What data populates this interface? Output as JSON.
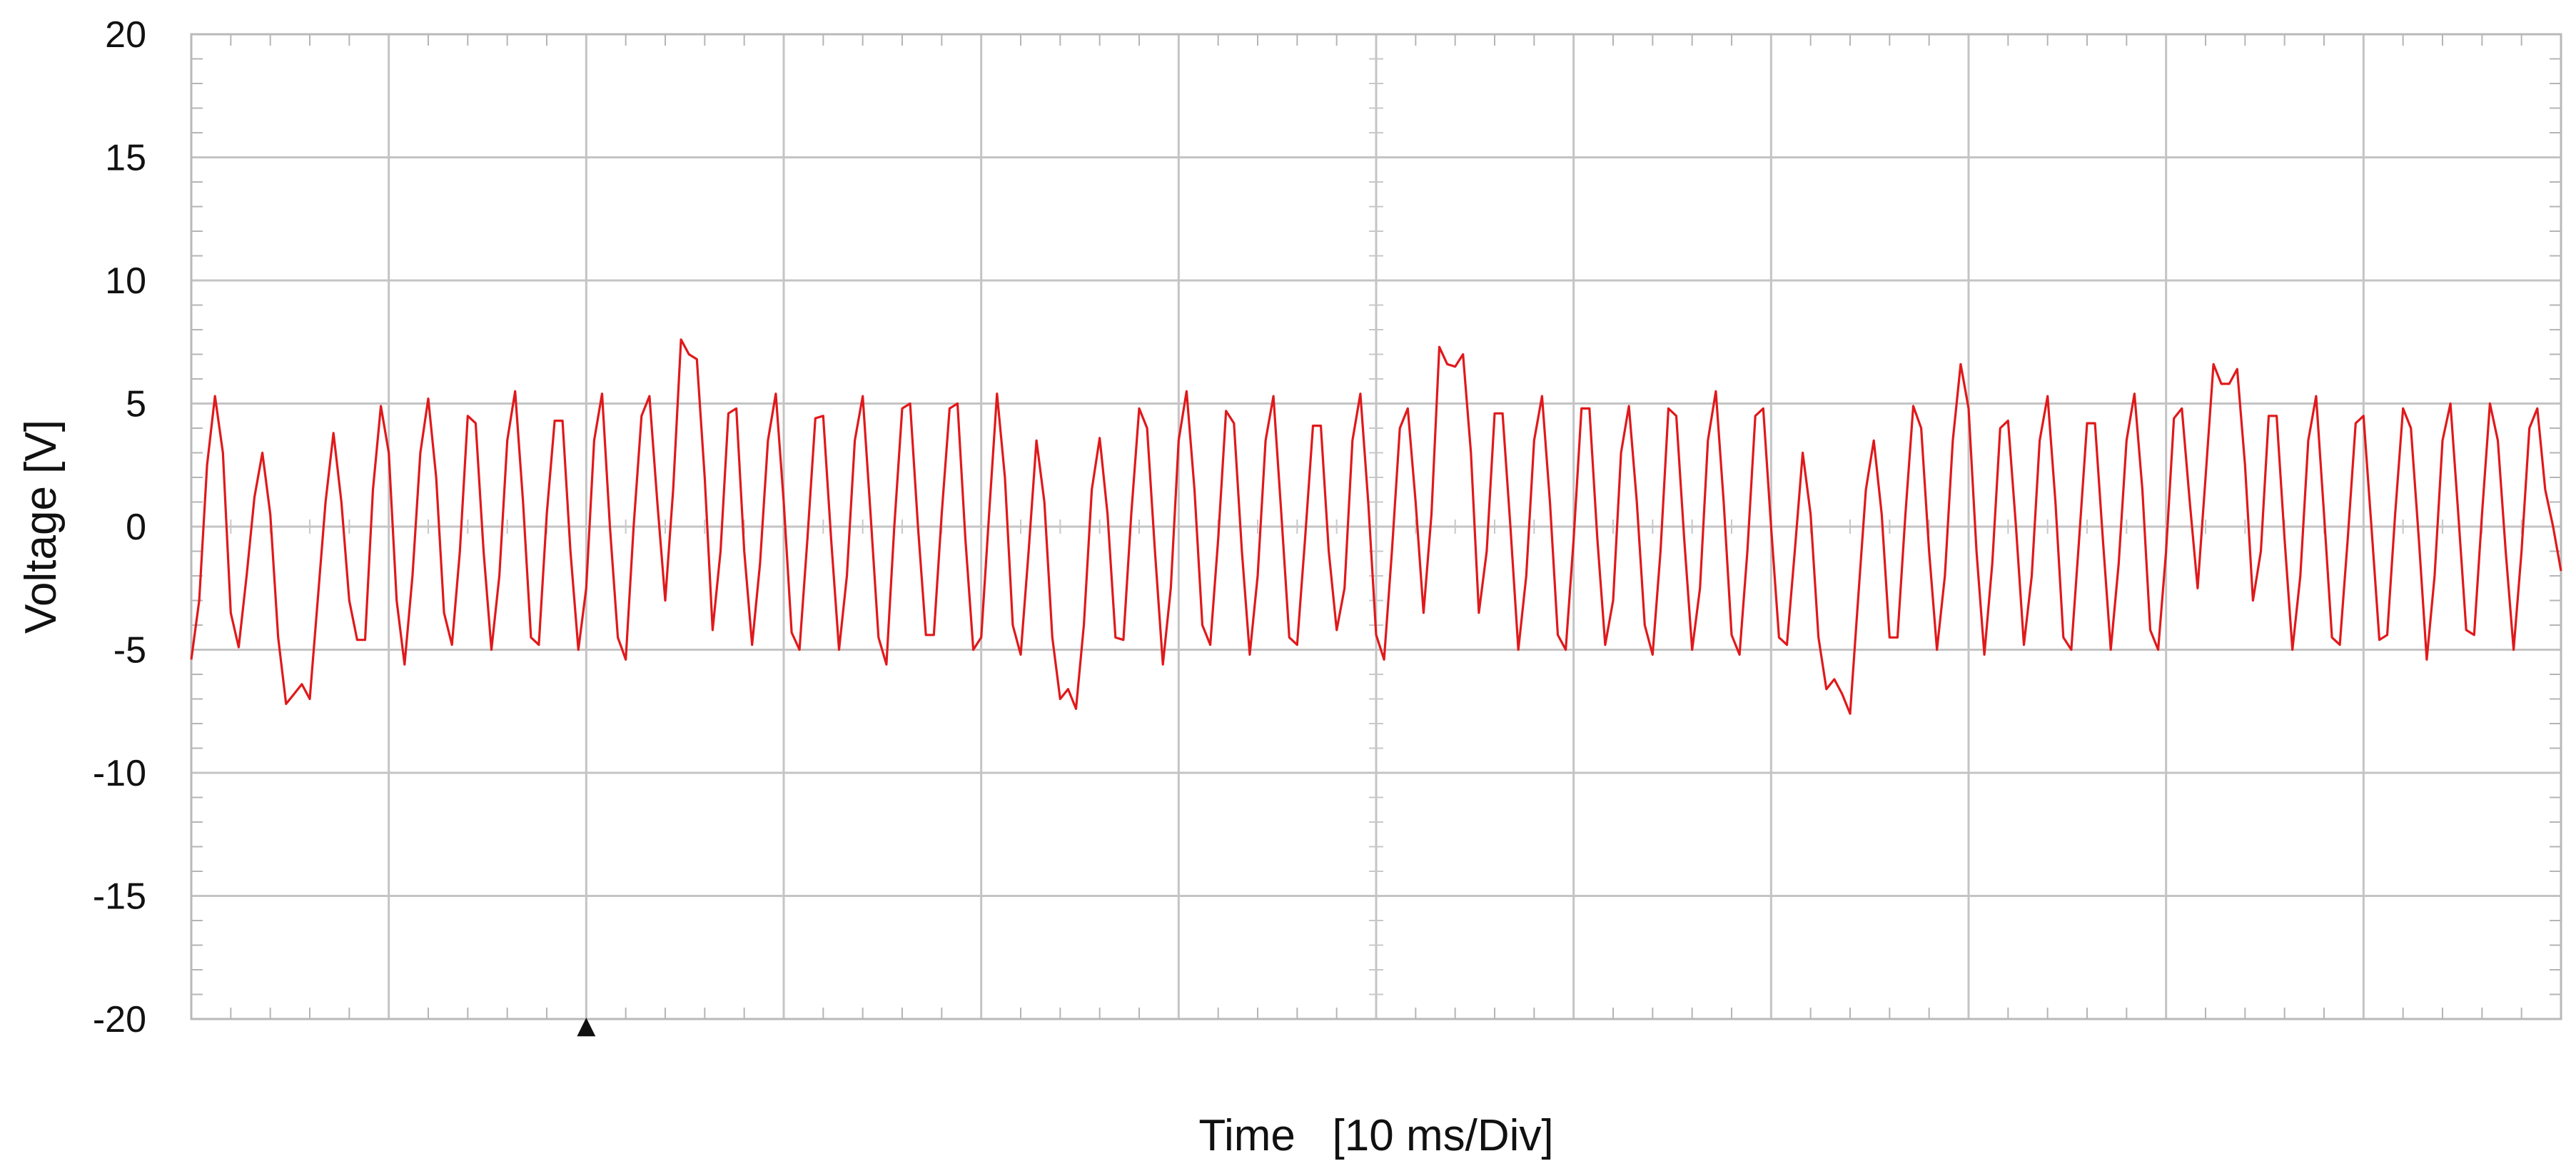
{
  "chart_data": {
    "type": "line",
    "title": "",
    "xlabel": "Time   [10 ms/Div]",
    "ylabel": "Voltage [V]",
    "ylim": [
      -20,
      20
    ],
    "yticks": [
      20,
      15,
      10,
      5,
      0,
      -5,
      -10,
      -15,
      -20
    ],
    "x_divisions": 12,
    "grid": true,
    "legend": "none",
    "trigger_marker_div": 2,
    "trigger_marker": "▲",
    "series": [
      {
        "color": "#e0191b",
        "x_unit": "div",
        "points": [
          [
            0.0,
            -5.4
          ],
          [
            0.04,
            -3.0
          ],
          [
            0.08,
            2.5
          ],
          [
            0.12,
            5.3
          ],
          [
            0.16,
            3.0
          ],
          [
            0.2,
            -3.5
          ],
          [
            0.24,
            -4.9
          ],
          [
            0.28,
            -2.0
          ],
          [
            0.32,
            1.2
          ],
          [
            0.36,
            3.0
          ],
          [
            0.4,
            0.5
          ],
          [
            0.44,
            -4.5
          ],
          [
            0.48,
            -7.2
          ],
          [
            0.52,
            -6.8
          ],
          [
            0.56,
            -6.4
          ],
          [
            0.6,
            -7.0
          ],
          [
            0.64,
            -3.0
          ],
          [
            0.68,
            1.0
          ],
          [
            0.72,
            3.8
          ],
          [
            0.76,
            1.0
          ],
          [
            0.8,
            -3.0
          ],
          [
            0.84,
            -4.6
          ],
          [
            0.88,
            -4.6
          ],
          [
            0.92,
            1.5
          ],
          [
            0.96,
            4.9
          ],
          [
            1.0,
            3.0
          ],
          [
            1.04,
            -3.0
          ],
          [
            1.08,
            -5.6
          ],
          [
            1.12,
            -2.0
          ],
          [
            1.16,
            3.0
          ],
          [
            1.2,
            5.2
          ],
          [
            1.24,
            2.0
          ],
          [
            1.28,
            -3.5
          ],
          [
            1.32,
            -4.8
          ],
          [
            1.36,
            -1.0
          ],
          [
            1.4,
            4.5
          ],
          [
            1.44,
            4.2
          ],
          [
            1.48,
            -1.0
          ],
          [
            1.52,
            -5.0
          ],
          [
            1.56,
            -2.0
          ],
          [
            1.6,
            3.5
          ],
          [
            1.64,
            5.5
          ],
          [
            1.68,
            1.0
          ],
          [
            1.72,
            -4.5
          ],
          [
            1.76,
            -4.8
          ],
          [
            1.8,
            0.5
          ],
          [
            1.84,
            4.3
          ],
          [
            1.88,
            4.3
          ],
          [
            1.92,
            -1.0
          ],
          [
            1.96,
            -5.0
          ],
          [
            2.0,
            -2.5
          ],
          [
            2.04,
            3.5
          ],
          [
            2.08,
            5.4
          ],
          [
            2.12,
            0.0
          ],
          [
            2.16,
            -4.5
          ],
          [
            2.2,
            -5.4
          ],
          [
            2.24,
            0.0
          ],
          [
            2.28,
            4.5
          ],
          [
            2.32,
            5.3
          ],
          [
            2.36,
            1.0
          ],
          [
            2.4,
            -3.0
          ],
          [
            2.44,
            1.5
          ],
          [
            2.48,
            7.6
          ],
          [
            2.52,
            7.0
          ],
          [
            2.56,
            6.8
          ],
          [
            2.6,
            2.0
          ],
          [
            2.64,
            -4.2
          ],
          [
            2.68,
            -1.0
          ],
          [
            2.72,
            4.6
          ],
          [
            2.76,
            4.8
          ],
          [
            2.8,
            -1.0
          ],
          [
            2.84,
            -4.8
          ],
          [
            2.88,
            -1.5
          ],
          [
            2.92,
            3.5
          ],
          [
            2.96,
            5.4
          ],
          [
            3.0,
            1.0
          ],
          [
            3.04,
            -4.3
          ],
          [
            3.08,
            -5.0
          ],
          [
            3.12,
            -0.5
          ],
          [
            3.16,
            4.4
          ],
          [
            3.2,
            4.5
          ],
          [
            3.24,
            -0.5
          ],
          [
            3.28,
            -5.0
          ],
          [
            3.32,
            -2.0
          ],
          [
            3.36,
            3.5
          ],
          [
            3.4,
            5.3
          ],
          [
            3.44,
            0.5
          ],
          [
            3.48,
            -4.5
          ],
          [
            3.52,
            -5.6
          ],
          [
            3.56,
            0.0
          ],
          [
            3.6,
            4.8
          ],
          [
            3.64,
            5.0
          ],
          [
            3.68,
            0.0
          ],
          [
            3.72,
            -4.4
          ],
          [
            3.76,
            -4.4
          ],
          [
            3.8,
            0.5
          ],
          [
            3.84,
            4.8
          ],
          [
            3.88,
            5.0
          ],
          [
            3.92,
            -0.5
          ],
          [
            3.96,
            -5.0
          ],
          [
            4.0,
            -4.5
          ],
          [
            4.04,
            0.5
          ],
          [
            4.08,
            5.4
          ],
          [
            4.12,
            2.0
          ],
          [
            4.16,
            -4.0
          ],
          [
            4.2,
            -5.2
          ],
          [
            4.24,
            -1.0
          ],
          [
            4.28,
            3.5
          ],
          [
            4.32,
            1.0
          ],
          [
            4.36,
            -4.5
          ],
          [
            4.4,
            -7.0
          ],
          [
            4.44,
            -6.6
          ],
          [
            4.48,
            -7.4
          ],
          [
            4.52,
            -4.0
          ],
          [
            4.56,
            1.5
          ],
          [
            4.6,
            3.6
          ],
          [
            4.64,
            0.5
          ],
          [
            4.68,
            -4.5
          ],
          [
            4.72,
            -4.6
          ],
          [
            4.76,
            0.5
          ],
          [
            4.8,
            4.8
          ],
          [
            4.84,
            4.0
          ],
          [
            4.88,
            -1.0
          ],
          [
            4.92,
            -5.6
          ],
          [
            4.96,
            -2.5
          ],
          [
            5.0,
            3.5
          ],
          [
            5.04,
            5.5
          ],
          [
            5.08,
            1.5
          ],
          [
            5.12,
            -4.0
          ],
          [
            5.16,
            -4.8
          ],
          [
            5.2,
            -0.5
          ],
          [
            5.24,
            4.7
          ],
          [
            5.28,
            4.2
          ],
          [
            5.32,
            -1.0
          ],
          [
            5.36,
            -5.2
          ],
          [
            5.4,
            -2.0
          ],
          [
            5.44,
            3.5
          ],
          [
            5.48,
            5.3
          ],
          [
            5.52,
            0.5
          ],
          [
            5.56,
            -4.5
          ],
          [
            5.6,
            -4.8
          ],
          [
            5.64,
            -0.5
          ],
          [
            5.68,
            4.1
          ],
          [
            5.72,
            4.1
          ],
          [
            5.76,
            -1.0
          ],
          [
            5.8,
            -4.2
          ],
          [
            5.84,
            -2.5
          ],
          [
            5.88,
            3.5
          ],
          [
            5.92,
            5.4
          ],
          [
            5.96,
            1.0
          ],
          [
            6.0,
            -4.4
          ],
          [
            6.04,
            -5.4
          ],
          [
            6.08,
            -1.0
          ],
          [
            6.12,
            4.0
          ],
          [
            6.16,
            4.8
          ],
          [
            6.2,
            1.0
          ],
          [
            6.24,
            -3.5
          ],
          [
            6.28,
            0.5
          ],
          [
            6.32,
            7.3
          ],
          [
            6.36,
            6.6
          ],
          [
            6.4,
            6.5
          ],
          [
            6.44,
            7.0
          ],
          [
            6.48,
            3.0
          ],
          [
            6.52,
            -3.5
          ],
          [
            6.56,
            -1.0
          ],
          [
            6.6,
            4.6
          ],
          [
            6.64,
            4.6
          ],
          [
            6.68,
            0.0
          ],
          [
            6.72,
            -5.0
          ],
          [
            6.76,
            -2.0
          ],
          [
            6.8,
            3.5
          ],
          [
            6.84,
            5.3
          ],
          [
            6.88,
            1.0
          ],
          [
            6.92,
            -4.4
          ],
          [
            6.96,
            -5.0
          ],
          [
            7.0,
            -0.5
          ],
          [
            7.04,
            4.8
          ],
          [
            7.08,
            4.8
          ],
          [
            7.12,
            -0.5
          ],
          [
            7.16,
            -4.8
          ],
          [
            7.2,
            -3.0
          ],
          [
            7.24,
            3.0
          ],
          [
            7.28,
            4.9
          ],
          [
            7.32,
            1.0
          ],
          [
            7.36,
            -4.0
          ],
          [
            7.4,
            -5.2
          ],
          [
            7.44,
            -1.0
          ],
          [
            7.48,
            4.8
          ],
          [
            7.52,
            4.5
          ],
          [
            7.56,
            -0.5
          ],
          [
            7.6,
            -5.0
          ],
          [
            7.64,
            -2.5
          ],
          [
            7.68,
            3.5
          ],
          [
            7.72,
            5.5
          ],
          [
            7.76,
            1.0
          ],
          [
            7.8,
            -4.4
          ],
          [
            7.84,
            -5.2
          ],
          [
            7.88,
            -1.0
          ],
          [
            7.92,
            4.5
          ],
          [
            7.96,
            4.8
          ],
          [
            8.0,
            0.0
          ],
          [
            8.04,
            -4.5
          ],
          [
            8.08,
            -4.8
          ],
          [
            8.12,
            -1.0
          ],
          [
            8.16,
            3.0
          ],
          [
            8.2,
            0.5
          ],
          [
            8.24,
            -4.5
          ],
          [
            8.28,
            -6.6
          ],
          [
            8.32,
            -6.2
          ],
          [
            8.36,
            -6.8
          ],
          [
            8.4,
            -7.6
          ],
          [
            8.44,
            -3.0
          ],
          [
            8.48,
            1.5
          ],
          [
            8.52,
            3.5
          ],
          [
            8.56,
            0.5
          ],
          [
            8.6,
            -4.5
          ],
          [
            8.64,
            -4.5
          ],
          [
            8.68,
            0.5
          ],
          [
            8.72,
            4.9
          ],
          [
            8.76,
            4.0
          ],
          [
            8.8,
            -1.0
          ],
          [
            8.84,
            -5.0
          ],
          [
            8.88,
            -2.0
          ],
          [
            8.92,
            3.5
          ],
          [
            8.96,
            6.6
          ],
          [
            9.0,
            4.8
          ],
          [
            9.04,
            -1.0
          ],
          [
            9.08,
            -5.2
          ],
          [
            9.12,
            -1.5
          ],
          [
            9.16,
            4.0
          ],
          [
            9.2,
            4.3
          ],
          [
            9.24,
            0.0
          ],
          [
            9.28,
            -4.8
          ],
          [
            9.32,
            -2.0
          ],
          [
            9.36,
            3.5
          ],
          [
            9.4,
            5.3
          ],
          [
            9.44,
            1.0
          ],
          [
            9.48,
            -4.5
          ],
          [
            9.52,
            -5.0
          ],
          [
            9.56,
            -0.5
          ],
          [
            9.6,
            4.2
          ],
          [
            9.64,
            4.2
          ],
          [
            9.68,
            -0.5
          ],
          [
            9.72,
            -5.0
          ],
          [
            9.76,
            -1.5
          ],
          [
            9.8,
            3.5
          ],
          [
            9.84,
            5.4
          ],
          [
            9.88,
            1.5
          ],
          [
            9.92,
            -4.2
          ],
          [
            9.96,
            -5.0
          ],
          [
            10.0,
            -1.0
          ],
          [
            10.04,
            4.4
          ],
          [
            10.08,
            4.8
          ],
          [
            10.12,
            1.0
          ],
          [
            10.16,
            -2.5
          ],
          [
            10.2,
            2.0
          ],
          [
            10.24,
            6.6
          ],
          [
            10.28,
            5.8
          ],
          [
            10.32,
            5.8
          ],
          [
            10.36,
            6.4
          ],
          [
            10.4,
            2.5
          ],
          [
            10.44,
            -3.0
          ],
          [
            10.48,
            -1.0
          ],
          [
            10.52,
            4.5
          ],
          [
            10.56,
            4.5
          ],
          [
            10.6,
            -0.5
          ],
          [
            10.64,
            -5.0
          ],
          [
            10.68,
            -2.0
          ],
          [
            10.72,
            3.5
          ],
          [
            10.76,
            5.3
          ],
          [
            10.8,
            0.5
          ],
          [
            10.84,
            -4.5
          ],
          [
            10.88,
            -4.8
          ],
          [
            10.92,
            -0.5
          ],
          [
            10.96,
            4.2
          ],
          [
            11.0,
            4.5
          ],
          [
            11.04,
            0.0
          ],
          [
            11.08,
            -4.6
          ],
          [
            11.12,
            -4.4
          ],
          [
            11.16,
            0.5
          ],
          [
            11.2,
            4.8
          ],
          [
            11.24,
            4.0
          ],
          [
            11.28,
            -0.5
          ],
          [
            11.32,
            -5.4
          ],
          [
            11.36,
            -2.0
          ],
          [
            11.4,
            3.5
          ],
          [
            11.44,
            5.0
          ],
          [
            11.48,
            0.5
          ],
          [
            11.52,
            -4.2
          ],
          [
            11.56,
            -4.4
          ],
          [
            11.6,
            0.5
          ],
          [
            11.64,
            5.0
          ],
          [
            11.68,
            3.5
          ],
          [
            11.72,
            -1.0
          ],
          [
            11.76,
            -5.0
          ],
          [
            11.8,
            -1.0
          ],
          [
            11.84,
            4.0
          ],
          [
            11.88,
            4.8
          ],
          [
            11.92,
            1.5
          ],
          [
            11.96,
            0.0
          ],
          [
            12.0,
            -1.8
          ]
        ]
      }
    ]
  }
}
